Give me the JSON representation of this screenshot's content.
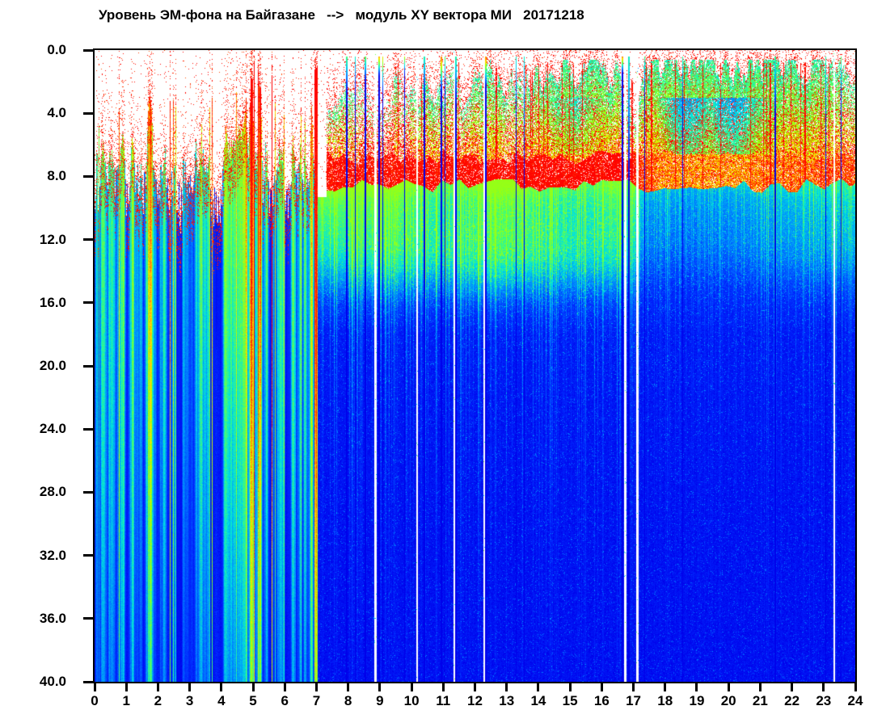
{
  "title": "Уровень ЭМ-фона на Байгазане   -->   модуль XY вектора МИ   20171218",
  "chart_data": {
    "type": "heatmap",
    "subtype": "daily electromagnetic background spectrogram",
    "title": "Уровень ЭМ-фона на Байгазане   -->   модуль XY вектора МИ   20171218",
    "station": "Байгазан",
    "date_code": "20171218",
    "xlim": [
      0,
      24
    ],
    "ylim": [
      0,
      40
    ],
    "y_inverted": true,
    "x_tick_labels": [
      "0",
      "1",
      "2",
      "3",
      "4",
      "5",
      "6",
      "7",
      "8",
      "9",
      "10",
      "11",
      "12",
      "13",
      "14",
      "15",
      "16",
      "17",
      "18",
      "19",
      "20",
      "21",
      "22",
      "23",
      "24"
    ],
    "y_tick_labels": [
      "0.0",
      "4.0",
      "8.0",
      "12.0",
      "16.0",
      "20.0",
      "24.0",
      "28.0",
      "32.0",
      "36.0",
      "40.0"
    ],
    "colormap": "jet",
    "no_signal_color": "#FFFFFF",
    "phases": [
      {
        "name": "impulsive-broadband-interference",
        "t_range": [
          0,
          7.05
        ],
        "character": "dense narrow vertical spikes; red speckled tops near depth 1-8, cores fade red-yellow-green-cyan-blue with depth; multicolour striping to bottom"
      },
      {
        "name": "stratified-background",
        "t_range": [
          7.05,
          24
        ],
        "layers": [
          {
            "depth": [
              0,
              2
            ],
            "level": "white / sparse red speckle"
          },
          {
            "depth": [
              2,
              7
            ],
            "level": "red speckle mounds with green patches; teal-blue pockets 18-21 h"
          },
          {
            "depth": [
              6.8,
              8.6
            ],
            "level": "intense red band"
          },
          {
            "depth": [
              8.6,
              13
            ],
            "level": "moderate cyan / light blue"
          },
          {
            "depth": [
              13,
              40
            ],
            "level": "low dark blue with cyan vertical streaks"
          }
        ]
      }
    ],
    "render": {
      "seed": 20171218,
      "white_threshold": 0.045,
      "palette": [
        [
          0,
          [
            0,
            0,
            150
          ]
        ],
        [
          0.1,
          [
            0,
            0,
            235
          ]
        ],
        [
          0.2,
          [
            0,
            45,
            255
          ]
        ],
        [
          0.3,
          [
            0,
            135,
            255
          ]
        ],
        [
          0.4,
          [
            0,
            225,
            225
          ]
        ],
        [
          0.5,
          [
            70,
            255,
            110
          ]
        ],
        [
          0.6,
          [
            170,
            255,
            0
          ]
        ],
        [
          0.7,
          [
            255,
            225,
            0
          ]
        ],
        [
          0.8,
          [
            255,
            115,
            0
          ]
        ],
        [
          0.9,
          [
            255,
            20,
            0
          ]
        ],
        [
          1,
          [
            255,
            0,
            0
          ]
        ]
      ],
      "phaseA": {
        "tEnd": 7.05,
        "env": [
          [
            0,
            0.6
          ],
          [
            0.6,
            0.66
          ],
          [
            1.2,
            0.6
          ],
          [
            1.6,
            0.74
          ],
          [
            2.0,
            0.58
          ],
          [
            2.4,
            0.72
          ],
          [
            2.8,
            0.8
          ],
          [
            3.2,
            0.74
          ],
          [
            3.6,
            0.68
          ],
          [
            4.0,
            0.8
          ],
          [
            4.4,
            0.86
          ],
          [
            4.8,
            0.92
          ],
          [
            5.2,
            0.9
          ],
          [
            5.6,
            0.84
          ],
          [
            6.0,
            0.74
          ],
          [
            6.4,
            0.7
          ],
          [
            6.8,
            0.76
          ],
          [
            7.05,
            0.62
          ]
        ],
        "cloud": [
          [
            0,
            0.55
          ],
          [
            0.6,
            0.6
          ],
          [
            1.3,
            0.45
          ],
          [
            2.2,
            0.75
          ],
          [
            3.0,
            0.8
          ],
          [
            3.6,
            0.45
          ],
          [
            4.2,
            0.3
          ],
          [
            5.0,
            0.35
          ],
          [
            5.8,
            0.3
          ],
          [
            6.4,
            0.2
          ],
          [
            7.05,
            0.15
          ]
        ],
        "spikeProb": 0.05,
        "floor": 0.12
      },
      "phaseB": {
        "tStart": 7.05,
        "topGap": [
          7.03,
          7.32
        ],
        "redTop": 6.8,
        "redBot": 8.6,
        "redColProb": 0.05,
        "mound": [
          [
            7.05,
            6.5
          ],
          [
            7.35,
            3.2
          ],
          [
            7.7,
            2.8
          ],
          [
            8.0,
            3.4
          ],
          [
            8.4,
            2.6
          ],
          [
            8.9,
            4.6
          ],
          [
            9.3,
            2.8
          ],
          [
            9.7,
            2.2
          ],
          [
            10.0,
            3.5
          ],
          [
            10.4,
            2.0
          ],
          [
            10.8,
            2.6
          ],
          [
            11.2,
            1.6
          ],
          [
            11.6,
            3.2
          ],
          [
            12.0,
            2.2
          ],
          [
            12.4,
            1.4
          ],
          [
            12.8,
            2.4
          ],
          [
            13.2,
            2.0
          ],
          [
            13.6,
            2.8
          ],
          [
            14.0,
            1.2
          ],
          [
            14.4,
            2.2
          ],
          [
            14.8,
            1.1
          ],
          [
            15.2,
            1.9
          ],
          [
            15.6,
            1.0
          ],
          [
            16.0,
            1.6
          ],
          [
            16.4,
            1.1
          ],
          [
            16.75,
            2.5
          ],
          [
            17.1,
            3.8
          ],
          [
            17.45,
            1.2
          ],
          [
            17.8,
            0.9
          ],
          [
            18.4,
            1.1
          ],
          [
            19.0,
            0.8
          ],
          [
            19.6,
            1.0
          ],
          [
            20.2,
            0.9
          ],
          [
            20.8,
            1.1
          ],
          [
            21.2,
            0.8
          ],
          [
            21.6,
            1.4
          ],
          [
            22.0,
            1.0
          ],
          [
            22.4,
            1.3
          ],
          [
            22.8,
            0.9
          ],
          [
            23.2,
            1.5
          ],
          [
            23.6,
            1.1
          ],
          [
            24,
            1.8
          ]
        ],
        "green": [
          [
            7.05,
            0.25
          ],
          [
            7.5,
            0.55
          ],
          [
            8.0,
            0.5
          ],
          [
            8.4,
            0.3
          ],
          [
            8.9,
            0.12
          ],
          [
            9.4,
            0.15
          ],
          [
            9.9,
            0.3
          ],
          [
            10.3,
            0.6
          ],
          [
            10.7,
            0.75
          ],
          [
            11.1,
            0.5
          ],
          [
            11.5,
            0.35
          ],
          [
            11.9,
            0.65
          ],
          [
            12.3,
            0.8
          ],
          [
            12.7,
            0.85
          ],
          [
            13.1,
            0.5
          ],
          [
            13.5,
            0.55
          ],
          [
            13.9,
            0.75
          ],
          [
            14.3,
            0.85
          ],
          [
            14.7,
            0.9
          ],
          [
            15.1,
            0.92
          ],
          [
            15.6,
            0.9
          ],
          [
            16.1,
            0.88
          ],
          [
            16.55,
            0.8
          ],
          [
            16.9,
            0.3
          ],
          [
            17.35,
            0.7
          ],
          [
            17.7,
            0.95
          ],
          [
            18.2,
            1
          ],
          [
            21.0,
            1
          ],
          [
            21.5,
            0.92
          ],
          [
            22.0,
            0.93
          ],
          [
            22.5,
            0.9
          ],
          [
            23.0,
            0.85
          ],
          [
            23.4,
            0.75
          ],
          [
            23.7,
            0.6
          ],
          [
            24,
            0.5
          ]
        ],
        "bluePatch": [
          [
            14.2,
            0
          ],
          [
            14.6,
            0.25
          ],
          [
            15.0,
            0.35
          ],
          [
            15.4,
            0.3
          ],
          [
            15.8,
            0.2
          ],
          [
            16.2,
            0.05
          ],
          [
            17.6,
            0
          ],
          [
            17.9,
            0.2
          ],
          [
            18.2,
            0.7
          ],
          [
            18.6,
            0.85
          ],
          [
            19.0,
            0.8
          ],
          [
            19.4,
            0.5
          ],
          [
            19.8,
            0.8
          ],
          [
            20.2,
            0.85
          ],
          [
            20.6,
            0.6
          ],
          [
            21.0,
            0.35
          ],
          [
            21.4,
            0.15
          ],
          [
            21.8,
            0.05
          ]
        ],
        "lightBand": [
          [
            7.3,
            0.3
          ],
          [
            9,
            0.7
          ],
          [
            10,
            0.9
          ],
          [
            12,
            1
          ],
          [
            14,
            0.95
          ],
          [
            15.5,
            0.85
          ],
          [
            16.6,
            0.7
          ],
          [
            17.2,
            0.25
          ],
          [
            18,
            0.15
          ],
          [
            19,
            0.15
          ],
          [
            20,
            0.2
          ],
          [
            21,
            0.25
          ],
          [
            22,
            0.3
          ],
          [
            23,
            0.35
          ],
          [
            24,
            0.35
          ]
        ],
        "deepScale": [
          [
            7.1,
            1
          ],
          [
            9.5,
            1
          ],
          [
            10.6,
            0.8
          ],
          [
            11.6,
            0.8
          ],
          [
            12.4,
            1
          ],
          [
            13.3,
            1
          ],
          [
            14.2,
            0.8
          ],
          [
            15.5,
            0.75
          ],
          [
            16.4,
            0.9
          ],
          [
            17.0,
            0.8
          ],
          [
            17.4,
            0.5
          ],
          [
            19,
            0.45
          ],
          [
            20.5,
            0.5
          ],
          [
            21.5,
            0.55
          ],
          [
            22.5,
            0.6
          ],
          [
            23.3,
            0.65
          ],
          [
            24,
            0.65
          ]
        ],
        "redBandEnv": [
          [
            7.05,
            0.9
          ],
          [
            8,
            0.85
          ],
          [
            9,
            0.8
          ],
          [
            10,
            0.9
          ],
          [
            16.8,
            0.95
          ],
          [
            17.4,
            0.55
          ],
          [
            18,
            0.4
          ],
          [
            20,
            0.38
          ],
          [
            21.5,
            0.45
          ],
          [
            22.5,
            0.5
          ],
          [
            23.5,
            0.6
          ],
          [
            24,
            0.6
          ]
        ],
        "streakEnv": [
          [
            7.1,
            0.9
          ],
          [
            9,
            1
          ],
          [
            16.6,
            0.95
          ],
          [
            17.3,
            0.5
          ],
          [
            19,
            0.45
          ],
          [
            21,
            0.6
          ],
          [
            22,
            0.7
          ],
          [
            24,
            0.75
          ]
        ],
        "profile": [
          [
            8.6,
            0.6
          ],
          [
            9.5,
            0.52
          ],
          [
            10.5,
            0.47
          ],
          [
            12,
            0.41
          ],
          [
            13,
            0.36
          ],
          [
            14.5,
            0.28
          ],
          [
            16,
            0.21
          ],
          [
            18,
            0.16
          ],
          [
            22,
            0.145
          ],
          [
            30,
            0.135
          ],
          [
            40,
            0.13
          ]
        ]
      },
      "events": [
        {
          "t": 7.92,
          "kind": "line",
          "w": 2,
          "v0": 0.56,
          "slope": -0.004
        },
        {
          "t": 8.2,
          "kind": "line",
          "w": 1,
          "v0": 0.5,
          "slope": -0.0035
        },
        {
          "t": 8.52,
          "kind": "line",
          "w": 2,
          "v0": 0.62,
          "slope": -0.006
        },
        {
          "t": 8.85,
          "kind": "gap",
          "w": 3
        },
        {
          "t": 8.95,
          "kind": "line",
          "w": 2,
          "v0": 0.97,
          "slope": -0.013
        },
        {
          "t": 9.08,
          "kind": "line",
          "w": 1,
          "v0": 0.78,
          "slope": -0.006
        },
        {
          "t": 9.77,
          "kind": "line",
          "w": 1,
          "v0": 0.85,
          "slope": -0.012
        },
        {
          "t": 10.15,
          "kind": "gap",
          "w": 2
        },
        {
          "t": 10.38,
          "kind": "line",
          "w": 2,
          "v0": 0.5,
          "slope": -0.003
        },
        {
          "t": 10.92,
          "kind": "line",
          "w": 2,
          "v0": 0.95,
          "slope": -0.008
        },
        {
          "t": 11.05,
          "kind": "line",
          "w": 1,
          "v0": 0.6,
          "slope": -0.005
        },
        {
          "t": 11.33,
          "kind": "gap",
          "w": 2
        },
        {
          "t": 11.38,
          "kind": "line",
          "w": 2,
          "v0": 0.52,
          "slope": -0.003
        },
        {
          "t": 12.26,
          "kind": "gap",
          "w": 2
        },
        {
          "t": 12.31,
          "kind": "line",
          "w": 2,
          "v0": 0.95,
          "slope": -0.009
        },
        {
          "t": 13.3,
          "kind": "line",
          "w": 1,
          "v0": 0.46,
          "slope": -0.002
        },
        {
          "t": 13.55,
          "kind": "line",
          "w": 1,
          "v0": 0.44,
          "slope": -0.0015
        },
        {
          "t": 16.62,
          "kind": "line",
          "w": 2,
          "v0": 1.05,
          "slope": -0.016
        },
        {
          "t": 16.73,
          "kind": "gap",
          "w": 3
        },
        {
          "t": 16.83,
          "kind": "line",
          "w": 2,
          "v0": 0.45,
          "slope": -0.001
        },
        {
          "t": 16.93,
          "kind": "redline",
          "w": 2
        },
        {
          "t": 17.12,
          "kind": "gap",
          "w": 3
        },
        {
          "t": 17.35,
          "kind": "line",
          "w": 1,
          "v0": 0.55,
          "slope": -0.004
        },
        {
          "t": 17.55,
          "kind": "redline",
          "w": 2
        },
        {
          "t": 18.3,
          "kind": "redline",
          "w": 1
        },
        {
          "t": 18.55,
          "kind": "line",
          "w": 1,
          "v0": 0.5,
          "slope": -0.0025
        },
        {
          "t": 21.3,
          "kind": "redline",
          "w": 2
        },
        {
          "t": 21.45,
          "kind": "line",
          "w": 2,
          "v0": 0.52,
          "slope": -0.0025
        },
        {
          "t": 21.95,
          "kind": "redline",
          "w": 1
        },
        {
          "t": 22.4,
          "kind": "redline",
          "w": 2
        },
        {
          "t": 22.9,
          "kind": "redline",
          "w": 1
        },
        {
          "t": 23.05,
          "kind": "line",
          "w": 1,
          "v0": 0.5,
          "slope": -0.002
        },
        {
          "t": 23.15,
          "kind": "redline",
          "w": 1
        },
        {
          "t": 23.3,
          "kind": "gap",
          "w": 2
        },
        {
          "t": 23.55,
          "kind": "line",
          "w": 1,
          "v0": 0.55,
          "slope": -0.003
        }
      ]
    }
  }
}
